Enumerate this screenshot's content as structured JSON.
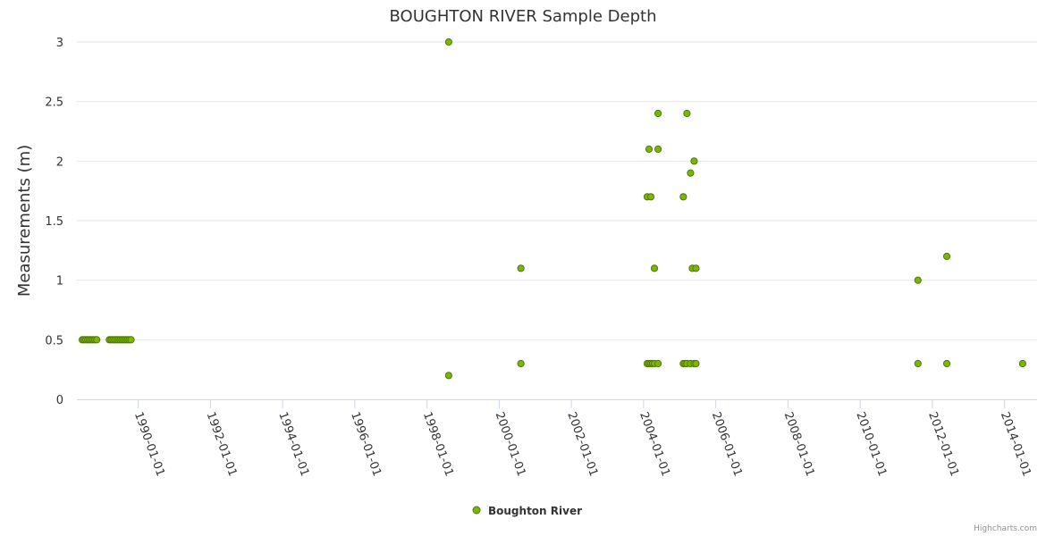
{
  "chart_data": {
    "type": "scatter",
    "title": "BOUGHTON RIVER Sample Depth",
    "xlabel": "",
    "ylabel": "Measurements (m)",
    "ylim": [
      0,
      3
    ],
    "yticks": [
      "0",
      "0.5",
      "1",
      "1.5",
      "2",
      "2.5",
      "3"
    ],
    "ytick_values": [
      0,
      0.5,
      1,
      1.5,
      2,
      2.5,
      3
    ],
    "xlim": [
      1988.3,
      2014.9
    ],
    "xticks": [
      "1990-01-01",
      "1992-01-01",
      "1994-01-01",
      "1996-01-01",
      "1998-01-01",
      "2000-01-01",
      "2002-01-01",
      "2004-01-01",
      "2006-01-01",
      "2008-01-01",
      "2010-01-01",
      "2012-01-01",
      "2014-01-01"
    ],
    "xtick_values": [
      1990,
      1992,
      1994,
      1996,
      1998,
      2000,
      2002,
      2004,
      2006,
      2008,
      2010,
      2012,
      2014
    ],
    "grid": true,
    "legend_position": "bottom-center",
    "colors": {
      "marker_fill": "#7cb50a",
      "marker_stroke": "#4f7a00",
      "grid": "#e6e6e6",
      "axis": "#ccd6eb"
    },
    "series": [
      {
        "name": "Boughton River",
        "points": [
          [
            1988.45,
            0.5
          ],
          [
            1988.5,
            0.5
          ],
          [
            1988.55,
            0.5
          ],
          [
            1988.6,
            0.5
          ],
          [
            1988.65,
            0.5
          ],
          [
            1988.7,
            0.5
          ],
          [
            1988.75,
            0.5
          ],
          [
            1988.8,
            0.5
          ],
          [
            1988.85,
            0.5
          ],
          [
            1989.2,
            0.5
          ],
          [
            1989.25,
            0.5
          ],
          [
            1989.3,
            0.5
          ],
          [
            1989.35,
            0.5
          ],
          [
            1989.4,
            0.5
          ],
          [
            1989.45,
            0.5
          ],
          [
            1989.5,
            0.5
          ],
          [
            1989.55,
            0.5
          ],
          [
            1989.6,
            0.5
          ],
          [
            1989.65,
            0.5
          ],
          [
            1989.7,
            0.5
          ],
          [
            1989.75,
            0.5
          ],
          [
            1989.8,
            0.5
          ],
          [
            1998.6,
            3.0
          ],
          [
            1998.6,
            0.2
          ],
          [
            2000.6,
            1.1
          ],
          [
            2000.6,
            0.3
          ],
          [
            2004.1,
            1.7
          ],
          [
            2004.15,
            2.1
          ],
          [
            2004.2,
            1.7
          ],
          [
            2004.3,
            1.1
          ],
          [
            2004.4,
            2.1
          ],
          [
            2004.4,
            2.4
          ],
          [
            2004.1,
            0.3
          ],
          [
            2004.15,
            0.3
          ],
          [
            2004.2,
            0.3
          ],
          [
            2004.25,
            0.3
          ],
          [
            2004.3,
            0.3
          ],
          [
            2004.4,
            0.3
          ],
          [
            2005.1,
            1.7
          ],
          [
            2005.2,
            2.4
          ],
          [
            2005.3,
            1.9
          ],
          [
            2005.35,
            1.1
          ],
          [
            2005.4,
            2.0
          ],
          [
            2005.45,
            1.1
          ],
          [
            2005.1,
            0.3
          ],
          [
            2005.15,
            0.3
          ],
          [
            2005.2,
            0.3
          ],
          [
            2005.3,
            0.3
          ],
          [
            2005.4,
            0.3
          ],
          [
            2005.45,
            0.3
          ],
          [
            2011.6,
            1.0
          ],
          [
            2011.6,
            0.3
          ],
          [
            2012.4,
            1.2
          ],
          [
            2012.4,
            0.3
          ],
          [
            2014.5,
            0.3
          ]
        ]
      }
    ]
  },
  "legend": {
    "label": "Boughton River"
  },
  "credits": {
    "text": "Highcharts.com"
  }
}
